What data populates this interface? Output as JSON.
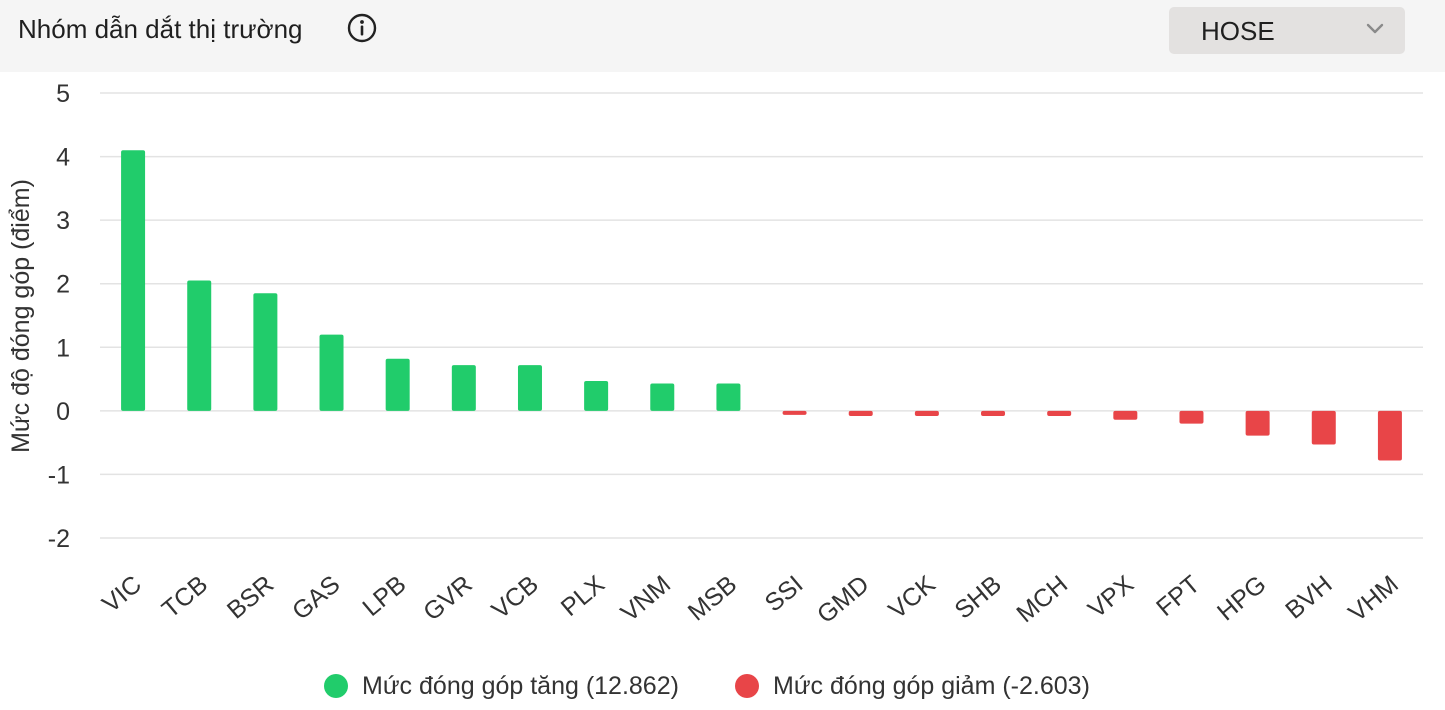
{
  "header": {
    "title": "Nhóm dẫn dắt thị trường",
    "info_icon": "info-circle-icon",
    "exchange_select": {
      "value": "HOSE",
      "icon": "chevron-down-icon"
    }
  },
  "legend": {
    "positive_label": "Mức đóng góp tăng (12.862)",
    "negative_label": "Mức đóng góp giảm (-2.603)"
  },
  "colors": {
    "positive": "#21cc6b",
    "negative": "#e84548",
    "grid": "#e3e3e3",
    "header_bg": "#f5f5f5",
    "dropdown_bg": "#e3e1e0"
  },
  "chart_data": {
    "type": "bar",
    "ylabel": "Mức độ đóng góp (điểm)",
    "ylim": [
      -2,
      5
    ],
    "yticks": [
      5,
      4,
      3,
      2,
      1,
      0,
      -1,
      -2
    ],
    "grid": true,
    "legend_position": "bottom",
    "categories": [
      "VIC",
      "TCB",
      "BSR",
      "GAS",
      "LPB",
      "GVR",
      "VCB",
      "PLX",
      "VNM",
      "MSB",
      "SSI",
      "GMD",
      "VCK",
      "SHB",
      "MCH",
      "VPX",
      "FPT",
      "HPG",
      "BVH",
      "VHM"
    ],
    "values": [
      4.1,
      2.05,
      1.85,
      1.2,
      0.82,
      0.72,
      0.72,
      0.47,
      0.43,
      0.43,
      -0.05,
      -0.08,
      -0.08,
      -0.08,
      -0.08,
      -0.14,
      -0.2,
      -0.39,
      -0.53,
      -0.78
    ]
  }
}
